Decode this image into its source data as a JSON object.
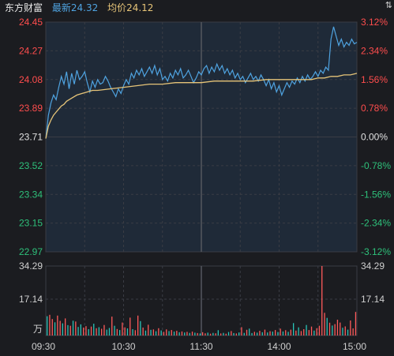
{
  "header": {
    "stock_name": "东方财富",
    "latest_label": "最新",
    "latest_value": "24.32",
    "avg_label": "均价",
    "avg_value": "24.12",
    "corner_glyph": "⇅"
  },
  "colors": {
    "background": "#1b1c20",
    "grid": "#3a3c44",
    "price_line": "#4fa3e0",
    "avg_line": "#e6c478",
    "up": "#ff4d4d",
    "down": "#2ec07a",
    "neutral": "#e0e0e0",
    "vol_up": "#ff5a5a",
    "vol_down": "#2ac4b8"
  },
  "chart_data": {
    "type": "line",
    "title": "",
    "prev_close": 23.71,
    "ylim": [
      22.97,
      24.45
    ],
    "x_tick_labels": [
      "09:30",
      "10:30",
      "11:30",
      "14:00",
      "15:00"
    ],
    "price_axis_labels": [
      "24.45",
      "24.27",
      "24.08",
      "23.89",
      "23.71",
      "23.52",
      "23.34",
      "23.15",
      "22.97"
    ],
    "pct_axis_labels": [
      "3.12%",
      "2.34%",
      "1.56%",
      "0.78%",
      "0.00%",
      "-0.78%",
      "-1.56%",
      "-2.34%",
      "-3.12%"
    ],
    "volume_axis_labels": [
      "34.29",
      "17.14",
      "万"
    ],
    "volume_ylim": [
      0,
      34.29
    ],
    "series": [
      {
        "name": "最新",
        "x": [
          0,
          2,
          4,
          6,
          8,
          10,
          12,
          14,
          16,
          18,
          20,
          22,
          24,
          26,
          28,
          30,
          32,
          34,
          36,
          38,
          40,
          42,
          44,
          46,
          48,
          50,
          52,
          54,
          56,
          58,
          60,
          62,
          64,
          66,
          68,
          70,
          72,
          74,
          76,
          78,
          80,
          82,
          84,
          86,
          88,
          90,
          92,
          94,
          96,
          98,
          100,
          102,
          104,
          106,
          108,
          110,
          112,
          114,
          116,
          118,
          120,
          122,
          124,
          126,
          128,
          130,
          132,
          134,
          136,
          138,
          140,
          142,
          144,
          146,
          148,
          150,
          152,
          154,
          156,
          158,
          160,
          162,
          164,
          166,
          168,
          170,
          172,
          174,
          176,
          178,
          180,
          182,
          184,
          186,
          188,
          190,
          192,
          194,
          196,
          198,
          200,
          202,
          204,
          206,
          208,
          210,
          212,
          214,
          216,
          218,
          220,
          222,
          224,
          226,
          228,
          230,
          232,
          234,
          236,
          238,
          240
        ],
        "values": [
          23.7,
          23.85,
          23.93,
          23.98,
          23.95,
          24.03,
          24.1,
          24.05,
          24.13,
          24.02,
          24.12,
          24.05,
          24.14,
          24.08,
          24.1,
          24.13,
          24.06,
          24.0,
          24.07,
          24.03,
          24.08,
          24.05,
          24.06,
          24.1,
          24.07,
          24.03,
          24.0,
          23.97,
          24.02,
          23.99,
          24.04,
          24.08,
          24.05,
          24.12,
          24.09,
          24.14,
          24.11,
          24.15,
          24.1,
          24.13,
          24.16,
          24.12,
          24.17,
          24.11,
          24.15,
          24.08,
          24.1,
          24.07,
          24.12,
          24.09,
          24.14,
          24.11,
          24.15,
          24.09,
          24.11,
          24.14,
          24.1,
          24.06,
          24.09,
          24.13,
          24.11,
          24.15,
          24.17,
          24.12,
          24.16,
          24.13,
          24.18,
          24.14,
          24.17,
          24.12,
          24.15,
          24.11,
          24.14,
          24.09,
          24.12,
          24.08,
          24.1,
          24.06,
          24.09,
          24.12,
          24.08,
          24.1,
          24.07,
          24.11,
          24.08,
          24.04,
          24.08,
          24.02,
          24.06,
          24.0,
          24.04,
          23.98,
          24.02,
          24.06,
          24.03,
          24.07,
          24.05,
          24.09,
          24.06,
          24.1,
          24.07,
          24.11,
          24.08,
          24.1,
          24.13,
          24.1,
          24.14,
          24.12,
          24.16,
          24.14,
          24.34,
          24.42,
          24.36,
          24.3,
          24.34,
          24.29,
          24.32,
          24.3,
          24.34,
          24.31,
          24.32
        ]
      },
      {
        "name": "均价",
        "x": [
          0,
          2,
          4,
          6,
          8,
          10,
          12,
          14,
          16,
          20,
          24,
          28,
          32,
          36,
          40,
          50,
          60,
          70,
          80,
          90,
          100,
          110,
          120,
          130,
          140,
          150,
          160,
          170,
          180,
          190,
          200,
          205,
          210,
          215,
          220,
          225,
          230,
          235,
          240
        ],
        "values": [
          23.7,
          23.78,
          23.82,
          23.85,
          23.87,
          23.89,
          23.91,
          23.92,
          23.94,
          23.96,
          23.98,
          23.99,
          24.0,
          24.01,
          24.01,
          24.02,
          24.03,
          24.04,
          24.05,
          24.05,
          24.06,
          24.06,
          24.06,
          24.07,
          24.07,
          24.07,
          24.07,
          24.08,
          24.08,
          24.08,
          24.08,
          24.08,
          24.09,
          24.09,
          24.1,
          24.1,
          24.11,
          24.11,
          24.12
        ]
      }
    ],
    "volume": {
      "x": [
        1,
        3,
        5,
        7,
        9,
        11,
        13,
        15,
        17,
        19,
        21,
        23,
        25,
        27,
        29,
        31,
        33,
        35,
        37,
        39,
        41,
        43,
        45,
        47,
        49,
        51,
        53,
        55,
        57,
        59,
        61,
        63,
        65,
        67,
        69,
        71,
        73,
        75,
        77,
        79,
        81,
        83,
        85,
        87,
        89,
        91,
        93,
        95,
        97,
        99,
        101,
        103,
        105,
        107,
        109,
        111,
        113,
        115,
        117,
        119,
        121,
        123,
        125,
        127,
        129,
        131,
        133,
        135,
        137,
        139,
        141,
        143,
        145,
        147,
        149,
        151,
        153,
        155,
        157,
        159,
        161,
        163,
        165,
        167,
        169,
        171,
        173,
        175,
        177,
        179,
        181,
        183,
        185,
        187,
        189,
        191,
        193,
        195,
        197,
        199,
        201,
        203,
        205,
        207,
        209,
        211,
        213,
        215,
        217,
        219,
        221,
        223,
        225,
        227,
        229,
        231,
        233,
        235,
        237,
        239
      ],
      "values": [
        9.5,
        10.2,
        8.1,
        6.5,
        9.8,
        7.2,
        6.0,
        8.4,
        5.1,
        4.8,
        7.3,
        6.9,
        4.2,
        5.5,
        3.9,
        4.6,
        3.1,
        4.4,
        5.8,
        3.6,
        4.1,
        3.3,
        5.2,
        2.9,
        3.7,
        9.3,
        4.8,
        3.2,
        2.7,
        6.4,
        4.0,
        3.5,
        8.8,
        3.1,
        2.6,
        9.8,
        7.1,
        3.9,
        2.4,
        5.3,
        2.8,
        3.0,
        2.1,
        3.6,
        2.5,
        1.8,
        3.0,
        2.2,
        2.7,
        1.9,
        2.3,
        1.6,
        2.0,
        1.5,
        1.8,
        1.3,
        1.9,
        1.4,
        1.2,
        1.0,
        1.6,
        1.1,
        1.4,
        0.9,
        1.3,
        1.1,
        2.6,
        1.0,
        1.3,
        0.9,
        1.7,
        2.2,
        1.2,
        1.0,
        1.5,
        4.1,
        1.3,
        2.8,
        3.4,
        1.2,
        1.8,
        1.4,
        2.3,
        1.6,
        2.9,
        1.5,
        2.1,
        1.9,
        2.7,
        1.7,
        3.4,
        2.0,
        2.6,
        1.8,
        2.9,
        6.1,
        2.4,
        4.0,
        2.2,
        3.1,
        5.2,
        2.7,
        4.4,
        2.4,
        3.6,
        4.8,
        34.29,
        11.2,
        8.7,
        6.3,
        4.9,
        5.6,
        7.8,
        6.4,
        3.8,
        4.5,
        2.9,
        7.4,
        3.5,
        11.6
      ],
      "directions": [
        "d",
        "u",
        "u",
        "d",
        "u",
        "u",
        "d",
        "u",
        "d",
        "u",
        "d",
        "u",
        "d",
        "d",
        "u",
        "u",
        "d",
        "u",
        "d",
        "u",
        "d",
        "u",
        "u",
        "d",
        "d",
        "u",
        "d",
        "u",
        "d",
        "u",
        "u",
        "d",
        "u",
        "d",
        "u",
        "u",
        "d",
        "u",
        "d",
        "u",
        "d",
        "u",
        "d",
        "u",
        "d",
        "u",
        "u",
        "d",
        "u",
        "d",
        "u",
        "d",
        "u",
        "d",
        "u",
        "d",
        "u",
        "d",
        "u",
        "d",
        "u",
        "u",
        "d",
        "u",
        "d",
        "u",
        "d",
        "u",
        "d",
        "u",
        "d",
        "u",
        "d",
        "u",
        "d",
        "u",
        "d",
        "u",
        "d",
        "d",
        "u",
        "d",
        "u",
        "d",
        "u",
        "d",
        "u",
        "d",
        "u",
        "d",
        "u",
        "d",
        "u",
        "d",
        "u",
        "d",
        "u",
        "d",
        "u",
        "u",
        "d",
        "u",
        "u",
        "d",
        "u",
        "u",
        "u",
        "u",
        "d",
        "u",
        "d",
        "u",
        "u",
        "u",
        "d",
        "u",
        "d",
        "u",
        "u",
        "u"
      ]
    }
  }
}
